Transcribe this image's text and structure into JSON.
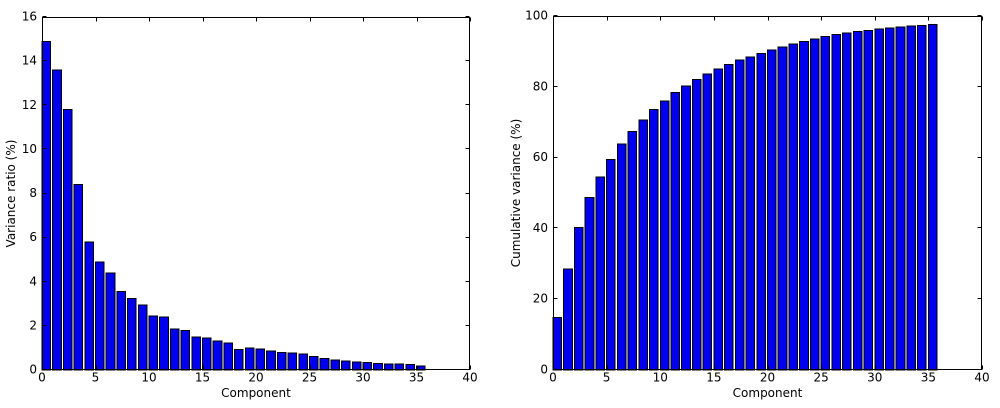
{
  "figure": {
    "background": "#ffffff",
    "bar_color": "#0000ee",
    "bar_edge_color": "#000000",
    "axis_color": "#000000"
  },
  "chart_data": [
    {
      "type": "bar",
      "name": "variance-ratio-chart",
      "title": "",
      "xlabel": "Component",
      "ylabel": "Variance ratio (%)",
      "xlim": [
        0,
        40
      ],
      "ylim": [
        0,
        16
      ],
      "xticks": [
        0,
        5,
        10,
        15,
        20,
        25,
        30,
        35,
        40
      ],
      "yticks": [
        0,
        2,
        4,
        6,
        8,
        10,
        12,
        14,
        16
      ],
      "bar_width": 0.8,
      "grid": false,
      "x": [
        0,
        1,
        2,
        3,
        4,
        5,
        6,
        7,
        8,
        9,
        10,
        11,
        12,
        13,
        14,
        15,
        16,
        17,
        18,
        19,
        20,
        21,
        22,
        23,
        24,
        25,
        26,
        27,
        28,
        29,
        30,
        31,
        32,
        33,
        34,
        35
      ],
      "values": [
        14.9,
        13.6,
        11.8,
        8.4,
        5.8,
        4.9,
        4.4,
        3.55,
        3.25,
        2.95,
        2.45,
        2.4,
        1.85,
        1.8,
        1.5,
        1.45,
        1.32,
        1.22,
        0.92,
        1.0,
        0.95,
        0.86,
        0.8,
        0.78,
        0.72,
        0.62,
        0.52,
        0.46,
        0.41,
        0.37,
        0.33,
        0.3,
        0.28,
        0.27,
        0.25,
        0.19
      ]
    },
    {
      "type": "bar",
      "name": "cumulative-variance-chart",
      "title": "",
      "xlabel": "Component",
      "ylabel": "Cumulative variance (%)",
      "xlim": [
        0,
        40
      ],
      "ylim": [
        0,
        100
      ],
      "xticks": [
        0,
        5,
        10,
        15,
        20,
        25,
        30,
        35,
        40
      ],
      "yticks": [
        0,
        20,
        40,
        60,
        80,
        100
      ],
      "bar_width": 0.8,
      "grid": false,
      "x": [
        0,
        1,
        2,
        3,
        4,
        5,
        6,
        7,
        8,
        9,
        10,
        11,
        12,
        13,
        14,
        15,
        16,
        17,
        18,
        19,
        20,
        21,
        22,
        23,
        24,
        25,
        26,
        27,
        28,
        29,
        30,
        31,
        32,
        33,
        34,
        35
      ],
      "values": [
        14.9,
        28.5,
        40.3,
        48.7,
        54.5,
        59.4,
        63.8,
        67.35,
        70.6,
        73.55,
        76.0,
        78.4,
        80.25,
        82.05,
        83.55,
        85.0,
        86.32,
        87.54,
        88.46,
        89.46,
        90.41,
        91.27,
        92.07,
        92.85,
        93.57,
        94.19,
        94.71,
        95.17,
        95.58,
        95.95,
        96.28,
        96.58,
        96.86,
        97.13,
        97.38,
        97.57
      ]
    }
  ]
}
